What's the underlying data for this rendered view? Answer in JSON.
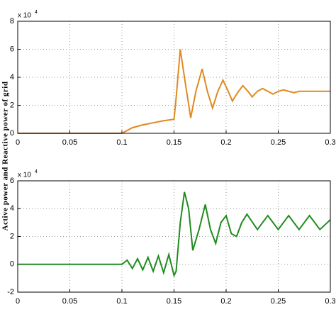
{
  "chart_data": [
    {
      "type": "line",
      "ylabel": "Active power and Reactive power of grid",
      "multiplier": {
        "base": "x 10",
        "exponent": "4"
      },
      "x": [
        0,
        0.1,
        0.11,
        0.12,
        0.13,
        0.14,
        0.15,
        0.152,
        0.156,
        0.16,
        0.166,
        0.171,
        0.177,
        0.182,
        0.187,
        0.192,
        0.197,
        0.202,
        0.206,
        0.211,
        0.216,
        0.221,
        0.225,
        0.23,
        0.235,
        0.24,
        0.245,
        0.25,
        0.255,
        0.26,
        0.265,
        0.27,
        0.28,
        0.29,
        0.3
      ],
      "values": [
        0,
        0,
        0.4,
        0.6,
        0.75,
        0.9,
        1.0,
        2.5,
        6.0,
        4.0,
        1.1,
        3.0,
        4.6,
        3.0,
        1.8,
        3.0,
        3.8,
        3.0,
        2.3,
        2.9,
        3.4,
        3.0,
        2.6,
        3.0,
        3.2,
        3.0,
        2.8,
        3.0,
        3.1,
        3.0,
        2.9,
        3.0,
        3.0,
        3.0,
        3.0
      ],
      "color": "#e08a1e",
      "xlim": [
        0,
        0.3
      ],
      "xticks": [
        0,
        0.05,
        0.1,
        0.15,
        0.2,
        0.25,
        0.3
      ],
      "ylim": [
        0,
        8
      ],
      "yticks": [
        0,
        2,
        4,
        6,
        8
      ],
      "grid": true
    },
    {
      "type": "line",
      "multiplier": {
        "base": "x 10",
        "exponent": "4"
      },
      "x": [
        0,
        0.1,
        0.105,
        0.11,
        0.115,
        0.12,
        0.125,
        0.13,
        0.135,
        0.14,
        0.145,
        0.15,
        0.152,
        0.156,
        0.16,
        0.164,
        0.168,
        0.174,
        0.18,
        0.185,
        0.19,
        0.195,
        0.2,
        0.205,
        0.21,
        0.215,
        0.22,
        0.23,
        0.24,
        0.25,
        0.26,
        0.27,
        0.28,
        0.29,
        0.3
      ],
      "values": [
        0,
        0,
        0.3,
        -0.3,
        0.4,
        -0.4,
        0.5,
        -0.5,
        0.6,
        -0.6,
        0.7,
        -0.8,
        -0.5,
        3.0,
        5.2,
        4.0,
        1.0,
        2.5,
        4.3,
        2.5,
        1.5,
        3.0,
        3.5,
        2.2,
        2.0,
        3.0,
        3.6,
        2.5,
        3.5,
        2.5,
        3.5,
        2.5,
        3.5,
        2.5,
        3.2
      ],
      "color": "#1e8c1e",
      "xlim": [
        0,
        0.3
      ],
      "xticks": [
        0,
        0.05,
        0.1,
        0.15,
        0.2,
        0.25,
        0.3
      ],
      "ylim": [
        -2,
        6
      ],
      "yticks": [
        -2,
        0,
        2,
        4,
        6
      ],
      "grid": true
    }
  ]
}
